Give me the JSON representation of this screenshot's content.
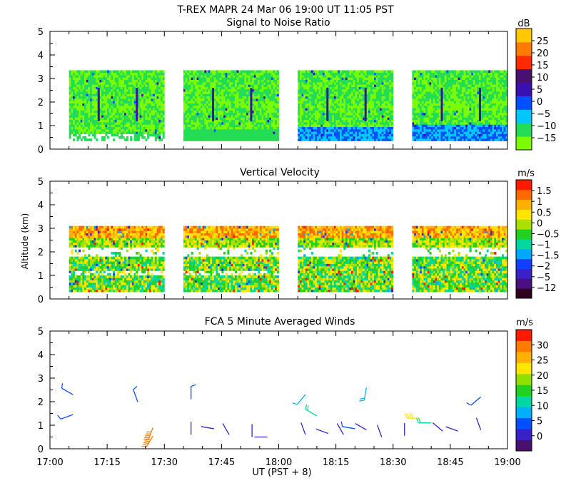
{
  "figure_title": "T-REX   MAPR 24 Mar 06   19:00 UT   11:05   PST",
  "x_axis": {
    "label": "UT  (PST + 8)",
    "ticks": [
      "17:00",
      "17:15",
      "17:30",
      "17:45",
      "18:00",
      "18:15",
      "18:30",
      "18:45",
      "19:00"
    ]
  },
  "colors": {
    "snr_scale": [
      "#7cfc00",
      "#22dd55",
      "#00c8ff",
      "#0050ff",
      "#3a10b0",
      "#4a1070",
      "#ff2a00",
      "#ff7a00",
      "#ffc800"
    ],
    "vel_scale": [
      "#300020",
      "#4a1080",
      "#3a20c8",
      "#1040ff",
      "#00a8ff",
      "#00d8a0",
      "#22d020",
      "#a8e000",
      "#ffe600",
      "#ffb000",
      "#ff6a00",
      "#ff1a00"
    ],
    "wind_scale": [
      "#4a1070",
      "#3a20c8",
      "#0050ff",
      "#00b0ff",
      "#00d8a0",
      "#22d020",
      "#90e000",
      "#ffe600",
      "#ffb000",
      "#ff7a00",
      "#ff1a00"
    ]
  },
  "chart_data": [
    {
      "type": "heatmap",
      "title": "Signal to Noise Ratio",
      "xlabel": "UT  (PST + 8)",
      "ylabel": "Altitude (km)",
      "xlim": [
        "17:00",
        "19:00"
      ],
      "ylim": [
        0,
        5
      ],
      "y_ticks": [
        "0",
        "1",
        "2",
        "3",
        "4",
        "5"
      ],
      "colorbar": {
        "unit": "dB",
        "tick_labels": [
          "25",
          "20",
          "15",
          "10",
          "5",
          "0",
          "−5",
          "−10",
          "−15"
        ]
      },
      "data_segments_ut": [
        [
          "17:05",
          "17:30"
        ],
        [
          "17:35",
          "18:00"
        ],
        [
          "18:05",
          "18:30"
        ],
        [
          "18:35",
          "19:00"
        ]
      ],
      "data_top_km": 3.3
    },
    {
      "type": "heatmap",
      "title": "Vertical Velocity",
      "xlabel": "UT  (PST + 8)",
      "ylabel": "Altitude (km)",
      "xlim": [
        "17:00",
        "19:00"
      ],
      "ylim": [
        0,
        5
      ],
      "y_ticks": [
        "0",
        "1",
        "2",
        "3",
        "4",
        "5"
      ],
      "colorbar": {
        "unit": "m/s",
        "tick_labels": [
          "1.5",
          "1",
          "0.5",
          "0",
          "−0.5",
          "−1",
          "−1.5",
          "−2",
          "−5",
          "−12"
        ]
      },
      "data_segments_ut": [
        [
          "17:05",
          "17:30"
        ],
        [
          "17:35",
          "18:00"
        ],
        [
          "18:05",
          "18:30"
        ],
        [
          "18:35",
          "19:00"
        ]
      ],
      "data_top_km": 3.1
    },
    {
      "type": "scatter",
      "title": "FCA 5 Minute Averaged Winds",
      "xlabel": "UT  (PST + 8)",
      "ylabel": "Altitude (km)",
      "xlim": [
        "17:00",
        "19:00"
      ],
      "ylim": [
        0,
        5
      ],
      "y_ticks": [
        "0",
        "1",
        "2",
        "3",
        "4",
        "5"
      ],
      "colorbar": {
        "unit": "m/s",
        "tick_labels": [
          "30",
          "25",
          "20",
          "15",
          "10",
          "5",
          "0"
        ]
      },
      "barbs": [
        {
          "t": 6,
          "z": 2.3,
          "speed": 5,
          "dir": 300
        },
        {
          "t": 6,
          "z": 1.45,
          "speed": 5,
          "dir": 250
        },
        {
          "t": 23,
          "z": 2.0,
          "speed": 5,
          "dir": 340
        },
        {
          "t": 27,
          "z": 0.9,
          "speed": 28,
          "dir": 200
        },
        {
          "t": 27,
          "z": 0.55,
          "speed": 28,
          "dir": 210
        },
        {
          "t": 37,
          "z": 2.1,
          "speed": 5,
          "dir": 0
        },
        {
          "t": 37,
          "z": 0.6,
          "speed": 3,
          "dir": 0
        },
        {
          "t": 43,
          "z": 0.85,
          "speed": 2,
          "dir": 280
        },
        {
          "t": 47,
          "z": 0.6,
          "speed": 3,
          "dir": 330
        },
        {
          "t": 53,
          "z": 0.5,
          "speed": 2,
          "dir": 0
        },
        {
          "t": 57,
          "z": 0.5,
          "speed": 3,
          "dir": 270
        },
        {
          "t": 67,
          "z": 2.3,
          "speed": 8,
          "dir": 220
        },
        {
          "t": 67,
          "z": 0.6,
          "speed": 3,
          "dir": 340
        },
        {
          "t": 70,
          "z": 1.4,
          "speed": 12,
          "dir": 300
        },
        {
          "t": 73,
          "z": 0.65,
          "speed": 3,
          "dir": 290
        },
        {
          "t": 77,
          "z": 0.6,
          "speed": 4,
          "dir": 330
        },
        {
          "t": 80,
          "z": 0.85,
          "speed": 5,
          "dir": 280
        },
        {
          "t": 83,
          "z": 2.6,
          "speed": 10,
          "dir": 190
        },
        {
          "t": 83,
          "z": 0.8,
          "speed": 3,
          "dir": 300
        },
        {
          "t": 87,
          "z": 0.5,
          "speed": 4,
          "dir": 340
        },
        {
          "t": 93,
          "z": 0.55,
          "speed": 4,
          "dir": 0
        },
        {
          "t": 97,
          "z": 1.3,
          "speed": 20,
          "dir": 270
        },
        {
          "t": 100,
          "z": 1.1,
          "speed": 12,
          "dir": 270
        },
        {
          "t": 103,
          "z": 0.75,
          "speed": 4,
          "dir": 310
        },
        {
          "t": 107,
          "z": 0.75,
          "speed": 3,
          "dir": 290
        },
        {
          "t": 113,
          "z": 2.2,
          "speed": 5,
          "dir": 230
        },
        {
          "t": 113,
          "z": 0.8,
          "speed": 4,
          "dir": 340
        }
      ]
    }
  ]
}
